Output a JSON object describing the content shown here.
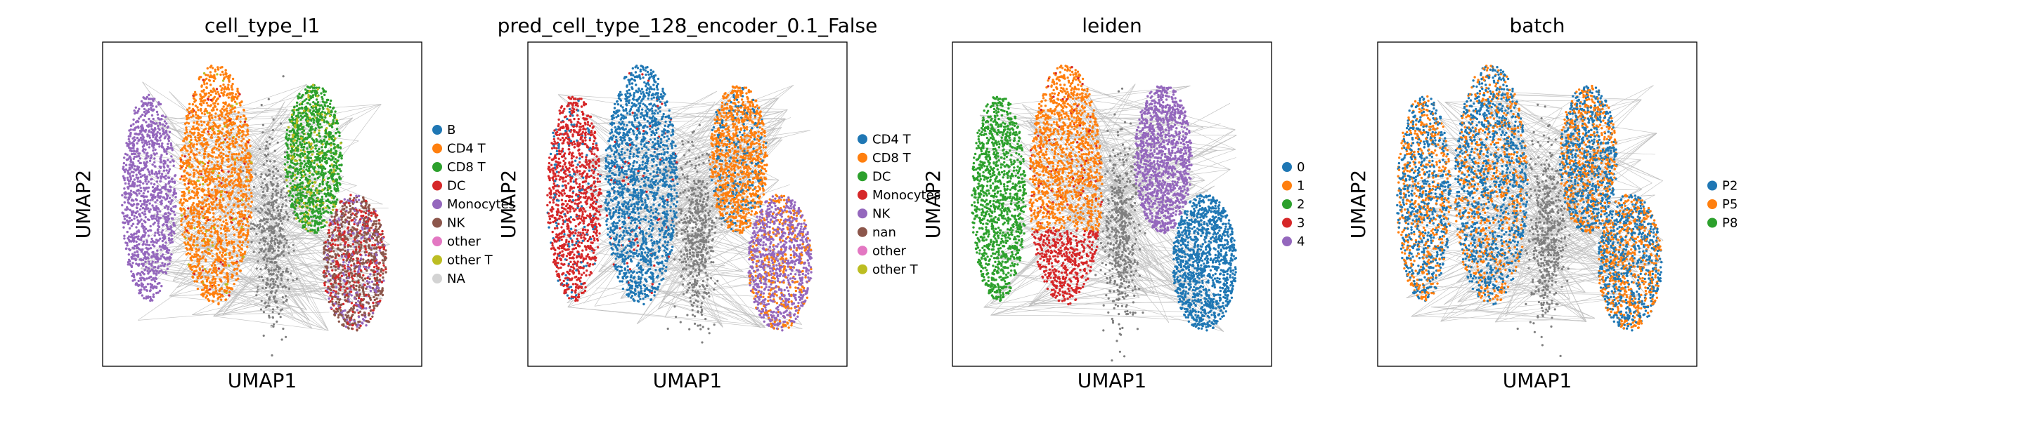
{
  "chart_data": [
    {
      "type": "scatter",
      "title": "cell_type_l1",
      "xlabel": "UMAP1",
      "ylabel": "UMAP2",
      "grid": false,
      "ticks": false,
      "legend_placement": "right-outside",
      "legend": [
        {
          "label": "B",
          "color": "#1f77b4"
        },
        {
          "label": "CD4 T",
          "color": "#ff7f0e"
        },
        {
          "label": "CD8 T",
          "color": "#2ca02c"
        },
        {
          "label": "DC",
          "color": "#d62728"
        },
        {
          "label": "Monocytes",
          "color": "#9467bd"
        },
        {
          "label": "NK",
          "color": "#8c564b"
        },
        {
          "label": "other",
          "color": "#e377c2"
        },
        {
          "label": "other T",
          "color": "#bcbd22"
        },
        {
          "label": "NA",
          "color": "#d3d3d3"
        }
      ]
    },
    {
      "type": "scatter",
      "title": "pred_cell_type_128_encoder_0.1_False",
      "xlabel": "UMAP1",
      "ylabel": "UMAP2",
      "grid": false,
      "ticks": false,
      "legend_placement": "right-outside",
      "legend": [
        {
          "label": "CD4 T",
          "color": "#1f77b4"
        },
        {
          "label": "CD8 T",
          "color": "#ff7f0e"
        },
        {
          "label": "DC",
          "color": "#2ca02c"
        },
        {
          "label": "Monocytes",
          "color": "#d62728"
        },
        {
          "label": "NK",
          "color": "#9467bd"
        },
        {
          "label": "nan",
          "color": "#8c564b"
        },
        {
          "label": "other",
          "color": "#e377c2"
        },
        {
          "label": "other T",
          "color": "#bcbd22"
        }
      ]
    },
    {
      "type": "scatter",
      "title": "leiden",
      "xlabel": "UMAP1",
      "ylabel": "UMAP2",
      "grid": false,
      "ticks": false,
      "legend_placement": "right-outside",
      "legend": [
        {
          "label": "0",
          "color": "#1f77b4"
        },
        {
          "label": "1",
          "color": "#ff7f0e"
        },
        {
          "label": "2",
          "color": "#2ca02c"
        },
        {
          "label": "3",
          "color": "#d62728"
        },
        {
          "label": "4",
          "color": "#9467bd"
        }
      ]
    },
    {
      "type": "scatter",
      "title": "batch",
      "xlabel": "UMAP1",
      "ylabel": "UMAP2",
      "grid": false,
      "ticks": false,
      "legend_placement": "right-outside",
      "legend": [
        {
          "label": "P2",
          "color": "#1f77b4"
        },
        {
          "label": "P5",
          "color": "#ff7f0e"
        },
        {
          "label": "P8",
          "color": "#2ca02c"
        }
      ]
    }
  ]
}
